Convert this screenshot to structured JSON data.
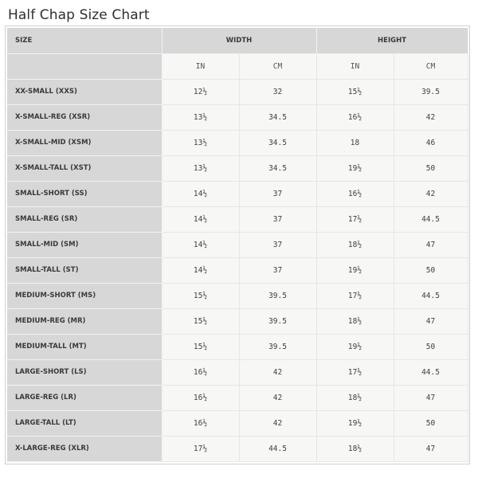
{
  "title": "Half Chap Size Chart",
  "headers": {
    "size": "SIZE",
    "width": "WIDTH",
    "height": "HEIGHT",
    "in": "IN",
    "cm": "CM"
  },
  "rows": [
    {
      "size": "XX-SMALL (XXS)",
      "w_in": "12½",
      "w_cm": "32",
      "h_in": "15½",
      "h_cm": "39.5"
    },
    {
      "size": "X-SMALL-REG (XSR)",
      "w_in": "13½",
      "w_cm": "34.5",
      "h_in": "16½",
      "h_cm": "42"
    },
    {
      "size": "X-SMALL-MID (XSM)",
      "w_in": "13½",
      "w_cm": "34.5",
      "h_in": "18",
      "h_cm": "46"
    },
    {
      "size": "X-SMALL-TALL (XST)",
      "w_in": "13½",
      "w_cm": "34.5",
      "h_in": "19½",
      "h_cm": "50"
    },
    {
      "size": "SMALL-SHORT (SS)",
      "w_in": "14½",
      "w_cm": "37",
      "h_in": "16½",
      "h_cm": "42"
    },
    {
      "size": "SMALL-REG (SR)",
      "w_in": "14½",
      "w_cm": "37",
      "h_in": "17½",
      "h_cm": "44.5"
    },
    {
      "size": "SMALL-MID (SM)",
      "w_in": "14½",
      "w_cm": "37",
      "h_in": "18½",
      "h_cm": "47"
    },
    {
      "size": "SMALL-TALL (ST)",
      "w_in": "14½",
      "w_cm": "37",
      "h_in": "19½",
      "h_cm": "50"
    },
    {
      "size": "MEDIUM-SHORT (MS)",
      "w_in": "15½",
      "w_cm": "39.5",
      "h_in": "17½",
      "h_cm": "44.5"
    },
    {
      "size": "MEDIUM-REG (MR)",
      "w_in": "15½",
      "w_cm": "39.5",
      "h_in": "18½",
      "h_cm": "47"
    },
    {
      "size": "MEDIUM-TALL (MT)",
      "w_in": "15½",
      "w_cm": "39.5",
      "h_in": "19½",
      "h_cm": "50"
    },
    {
      "size": "LARGE-SHORT (LS)",
      "w_in": "16½",
      "w_cm": "42",
      "h_in": "17½",
      "h_cm": "44.5"
    },
    {
      "size": "LARGE-REG (LR)",
      "w_in": "16½",
      "w_cm": "42",
      "h_in": "18½",
      "h_cm": "47"
    },
    {
      "size": "LARGE-TALL (LT)",
      "w_in": "16½",
      "w_cm": "42",
      "h_in": "19½",
      "h_cm": "50"
    },
    {
      "size": "X-LARGE-REG (XLR)",
      "w_in": "17½",
      "w_cm": "44.5",
      "h_in": "18½",
      "h_cm": "47"
    }
  ]
}
